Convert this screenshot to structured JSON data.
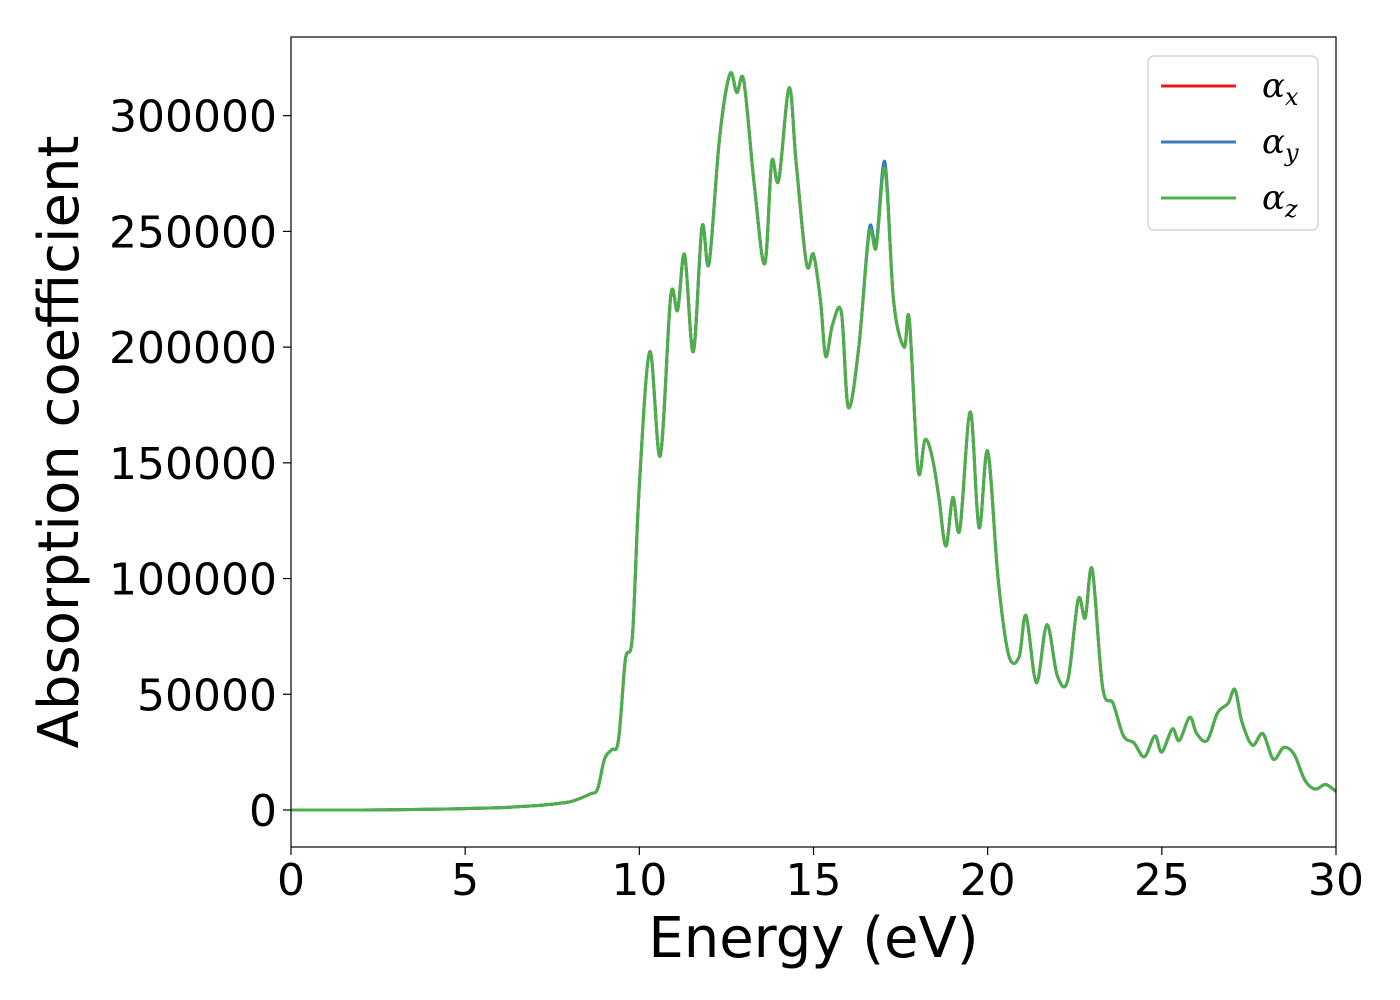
{
  "chart_data": {
    "type": "line",
    "title": "",
    "xlabel": "Energy (eV)",
    "ylabel": "Absorption coefficient",
    "xlim": [
      0,
      30
    ],
    "ylim": [
      -16000,
      334000
    ],
    "xticks": [
      0,
      5,
      10,
      15,
      20,
      25,
      30
    ],
    "yticks": [
      0,
      50000,
      100000,
      150000,
      200000,
      250000,
      300000
    ],
    "grid": false,
    "legend_position": "top-right",
    "legend": [
      {
        "symbol": "α",
        "sub": "x",
        "color": "#e41a1c"
      },
      {
        "symbol": "α",
        "sub": "y",
        "color": "#377eb8"
      },
      {
        "symbol": "α",
        "sub": "z",
        "color": "#4daf4a"
      }
    ],
    "series": [
      {
        "name": "αx",
        "color": "#e41a1c",
        "x": [
          0,
          2,
          4,
          5,
          6,
          6.5,
          7,
          7.5,
          8,
          8.3,
          8.6,
          8.8,
          9.0,
          9.2,
          9.4,
          9.6,
          9.8,
          10.0,
          10.3,
          10.6,
          10.9,
          11.1,
          11.3,
          11.55,
          11.8,
          12.0,
          12.3,
          12.6,
          12.8,
          13.0,
          13.3,
          13.6,
          13.8,
          14.0,
          14.3,
          14.5,
          14.8,
          15.0,
          15.2,
          15.35,
          15.55,
          15.8,
          16.0,
          16.3,
          16.6,
          16.8,
          17.05,
          17.3,
          17.6,
          17.75,
          18.0,
          18.2,
          18.4,
          18.6,
          18.8,
          19.0,
          19.2,
          19.5,
          19.75,
          20.0,
          20.3,
          20.6,
          20.9,
          21.1,
          21.4,
          21.7,
          22.0,
          22.3,
          22.6,
          22.8,
          23.0,
          23.3,
          23.6,
          23.9,
          24.2,
          24.5,
          24.8,
          25.0,
          25.3,
          25.5,
          25.8,
          26.0,
          26.3,
          26.6,
          26.9,
          27.1,
          27.3,
          27.6,
          27.9,
          28.2,
          28.5,
          28.8,
          29.1,
          29.4,
          29.7,
          30.0
        ],
        "y": [
          0,
          0,
          300,
          600,
          1000,
          1400,
          1800,
          2500,
          3500,
          5000,
          7000,
          9000,
          22000,
          26000,
          30000,
          65000,
          75000,
          140000,
          198000,
          153000,
          222000,
          216000,
          240000,
          198000,
          252000,
          236000,
          290000,
          318000,
          310000,
          315000,
          270000,
          236000,
          280000,
          272000,
          312000,
          280000,
          236000,
          240000,
          220000,
          196000,
          210000,
          215000,
          174000,
          200000,
          250000,
          244000,
          279000,
          220000,
          200000,
          212000,
          147000,
          160000,
          153000,
          135000,
          114000,
          135000,
          121000,
          172000,
          122000,
          155000,
          100000,
          67000,
          66000,
          84000,
          55000,
          80000,
          58000,
          56000,
          91000,
          83000,
          104000,
          53000,
          46000,
          32000,
          29000,
          23000,
          32000,
          25000,
          35000,
          30000,
          40000,
          33000,
          30000,
          42000,
          46000,
          52000,
          38000,
          28000,
          33000,
          22000,
          27000,
          24000,
          13000,
          9000,
          11000,
          8000
        ]
      },
      {
        "name": "αy",
        "color": "#377eb8",
        "x": [
          0,
          2,
          4,
          5,
          6,
          6.5,
          7,
          7.5,
          8,
          8.3,
          8.6,
          8.8,
          9.0,
          9.2,
          9.4,
          9.6,
          9.8,
          10.0,
          10.3,
          10.6,
          10.9,
          11.1,
          11.3,
          11.55,
          11.8,
          12.0,
          12.3,
          12.6,
          12.8,
          13.0,
          13.3,
          13.6,
          13.8,
          14.0,
          14.3,
          14.5,
          14.8,
          15.0,
          15.2,
          15.35,
          15.55,
          15.8,
          16.0,
          16.3,
          16.6,
          16.8,
          17.05,
          17.3,
          17.6,
          17.75,
          18.0,
          18.2,
          18.4,
          18.6,
          18.8,
          19.0,
          19.2,
          19.5,
          19.75,
          20.0,
          20.3,
          20.6,
          20.9,
          21.1,
          21.4,
          21.7,
          22.0,
          22.3,
          22.6,
          22.8,
          23.0,
          23.3,
          23.6,
          23.9,
          24.2,
          24.5,
          24.8,
          25.0,
          25.3,
          25.5,
          25.8,
          26.0,
          26.3,
          26.6,
          26.9,
          27.1,
          27.3,
          27.6,
          27.9,
          28.2,
          28.5,
          28.8,
          29.1,
          29.4,
          29.7,
          30.0
        ],
        "y": [
          0,
          0,
          300,
          600,
          1000,
          1400,
          1800,
          2500,
          3500,
          5000,
          7000,
          9000,
          22000,
          26000,
          30000,
          65000,
          75000,
          140000,
          198000,
          153000,
          222000,
          216000,
          240000,
          198000,
          252000,
          236000,
          290000,
          318000,
          310000,
          315000,
          270000,
          236000,
          280000,
          272000,
          312000,
          280000,
          236000,
          240000,
          220000,
          196000,
          210000,
          215000,
          174000,
          200000,
          251000,
          245000,
          280000,
          220000,
          200000,
          212000,
          147000,
          160000,
          153000,
          135000,
          114000,
          135000,
          121000,
          172000,
          122000,
          155000,
          100000,
          67000,
          66000,
          84000,
          55000,
          80000,
          58000,
          56000,
          91000,
          83000,
          104000,
          53000,
          46000,
          32000,
          29000,
          23000,
          32000,
          25000,
          35000,
          30000,
          40000,
          33000,
          30000,
          42000,
          46000,
          52000,
          38000,
          28000,
          33000,
          22000,
          27000,
          24000,
          13000,
          9000,
          11000,
          8000
        ]
      },
      {
        "name": "αz",
        "color": "#4daf4a",
        "x": [
          0,
          2,
          4,
          5,
          6,
          6.5,
          7,
          7.5,
          8,
          8.3,
          8.6,
          8.8,
          9.0,
          9.2,
          9.4,
          9.6,
          9.8,
          10.0,
          10.3,
          10.6,
          10.9,
          11.1,
          11.3,
          11.55,
          11.8,
          12.0,
          12.3,
          12.6,
          12.8,
          13.0,
          13.3,
          13.6,
          13.8,
          14.0,
          14.3,
          14.5,
          14.8,
          15.0,
          15.2,
          15.35,
          15.55,
          15.8,
          16.0,
          16.3,
          16.6,
          16.8,
          17.05,
          17.3,
          17.6,
          17.75,
          18.0,
          18.2,
          18.4,
          18.6,
          18.8,
          19.0,
          19.2,
          19.5,
          19.75,
          20.0,
          20.3,
          20.6,
          20.9,
          21.1,
          21.4,
          21.7,
          22.0,
          22.3,
          22.6,
          22.8,
          23.0,
          23.3,
          23.6,
          23.9,
          24.2,
          24.5,
          24.8,
          25.0,
          25.3,
          25.5,
          25.8,
          26.0,
          26.3,
          26.6,
          26.9,
          27.1,
          27.3,
          27.6,
          27.9,
          28.2,
          28.5,
          28.8,
          29.1,
          29.4,
          29.7,
          30.0
        ],
        "y": [
          0,
          0,
          300,
          600,
          1000,
          1400,
          1800,
          2500,
          3500,
          5000,
          7000,
          9000,
          22000,
          26000,
          30000,
          65000,
          75000,
          140000,
          198000,
          153000,
          222000,
          216000,
          240000,
          198000,
          252000,
          236000,
          290000,
          318000,
          310000,
          315000,
          270000,
          236000,
          280000,
          272000,
          312000,
          280000,
          236000,
          240000,
          220000,
          196000,
          210000,
          215000,
          174000,
          200000,
          249000,
          243000,
          277000,
          220000,
          200000,
          212000,
          147000,
          160000,
          153000,
          135000,
          114000,
          135000,
          121000,
          172000,
          122000,
          155000,
          100000,
          67000,
          66000,
          84000,
          55000,
          80000,
          58000,
          56000,
          91000,
          83000,
          104000,
          53000,
          46000,
          32000,
          29000,
          23000,
          32000,
          25000,
          35000,
          30000,
          40000,
          33000,
          30000,
          42000,
          46000,
          52000,
          38000,
          28000,
          33000,
          22000,
          27000,
          24000,
          13000,
          9000,
          11000,
          8000
        ]
      }
    ]
  }
}
